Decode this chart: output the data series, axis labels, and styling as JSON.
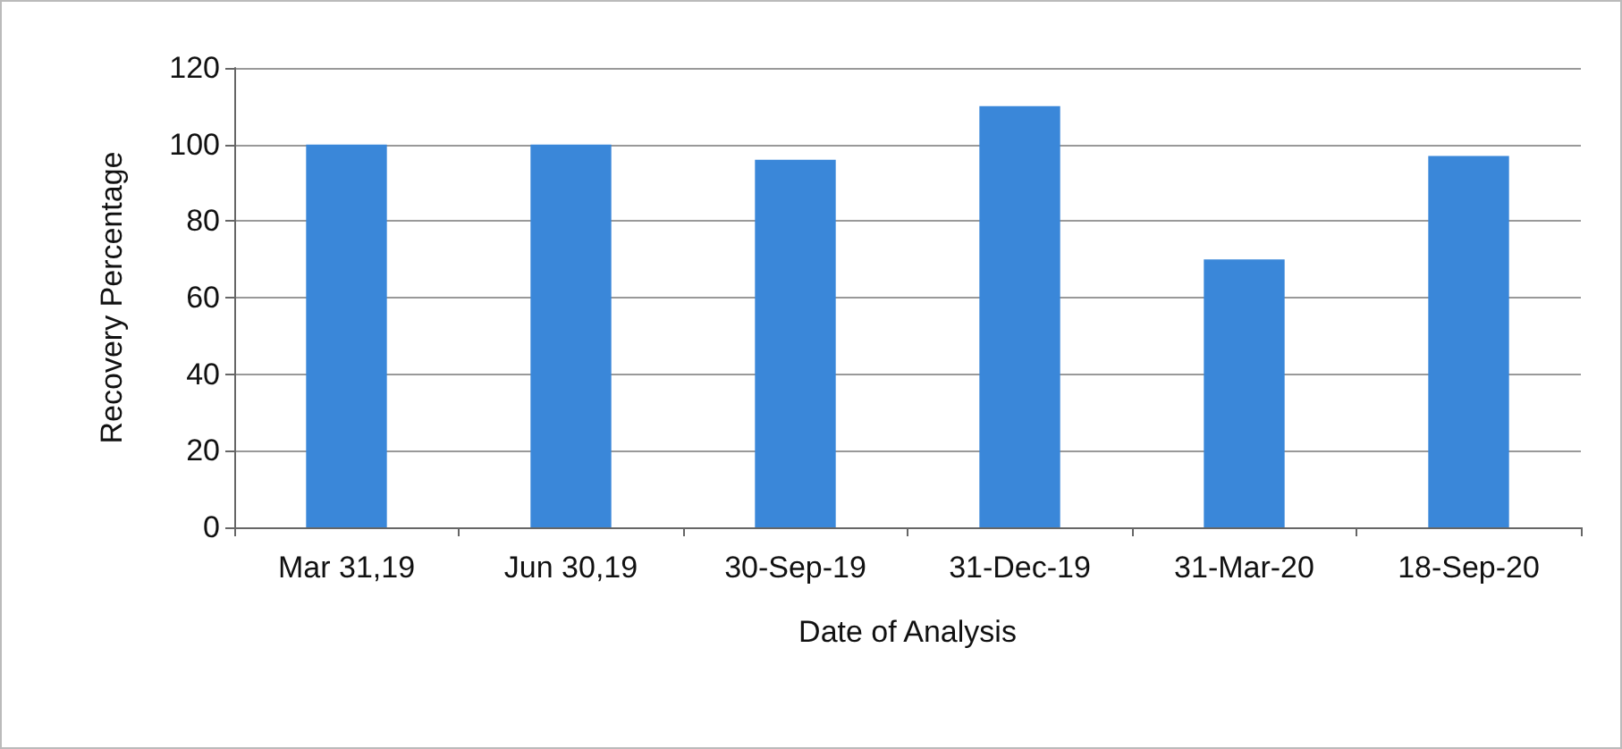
{
  "chart_data": {
    "type": "bar",
    "xlabel": "Date of Analysis",
    "ylabel": "Recovery Percentage",
    "categories": [
      "Mar 31,19",
      "Jun 30,19",
      "30-Sep-19",
      "31-Dec-19",
      "31-Mar-20",
      "18-Sep-20"
    ],
    "values": [
      100,
      100,
      96,
      110,
      70,
      97
    ],
    "color": "#3a87d9",
    "ylim": [
      0,
      120
    ],
    "yticks": [
      0,
      20,
      40,
      60,
      80,
      100,
      120
    ],
    "grid": "y"
  }
}
